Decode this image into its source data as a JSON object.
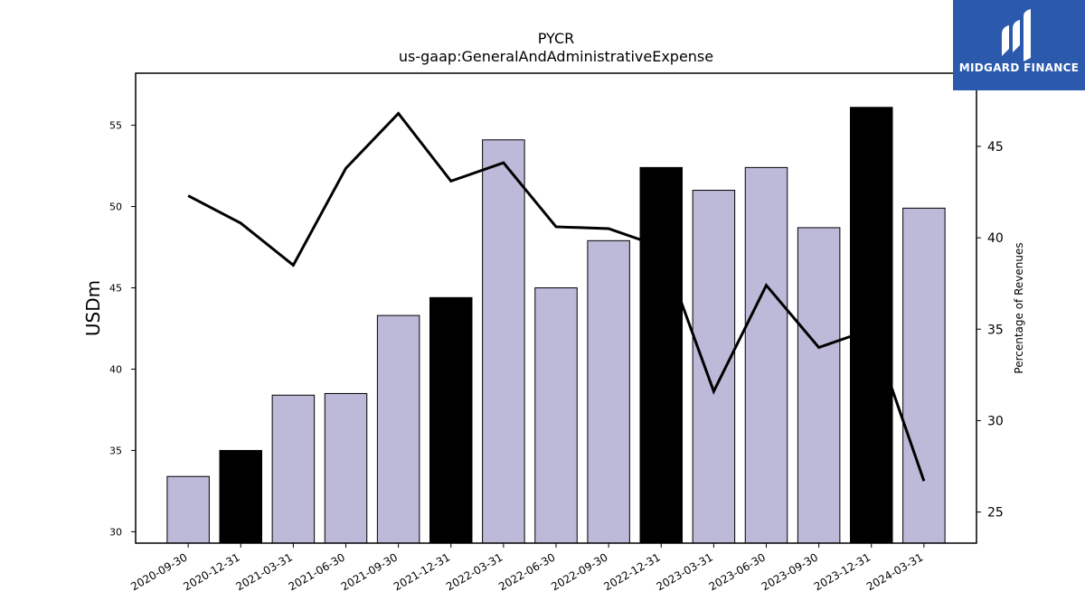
{
  "chart_data": {
    "type": "bar",
    "title": "PYCR",
    "subtitle": "us-gaap:GeneralAndAdministrativeExpense",
    "ylabel": "USDm",
    "y2label": "Percentage of Revenues",
    "categories": [
      "2020-09-30",
      "2020-12-31",
      "2021-03-31",
      "2021-06-30",
      "2021-09-30",
      "2021-12-31",
      "2022-03-31",
      "2022-06-30",
      "2022-09-30",
      "2022-12-31",
      "2023-03-31",
      "2023-06-30",
      "2023-09-30",
      "2023-12-31",
      "2024-03-31"
    ],
    "series": [
      {
        "kind": "bar",
        "values": [
          33.4,
          35.0,
          38.4,
          38.5,
          43.3,
          44.4,
          54.1,
          45.0,
          47.9,
          52.4,
          51.0,
          52.4,
          48.7,
          56.1,
          49.9
        ],
        "colors": [
          "#bcb9d9",
          "#000000",
          "#bcb9d9",
          "#bcb9d9",
          "#bcb9d9",
          "#000000",
          "#bcb9d9",
          "#bcb9d9",
          "#bcb9d9",
          "#000000",
          "#bcb9d9",
          "#bcb9d9",
          "#bcb9d9",
          "#000000",
          "#bcb9d9"
        ]
      },
      {
        "kind": "line",
        "axis": "right",
        "values": [
          42.3,
          40.8,
          38.5,
          43.8,
          46.8,
          43.1,
          44.1,
          40.6,
          40.5,
          39.5,
          31.6,
          37.4,
          34.0,
          35.0,
          26.7
        ]
      }
    ],
    "ylim": [
      29.3,
      58.2
    ],
    "y2lim": [
      23.3,
      49.0
    ],
    "yticks": [
      30,
      35,
      40,
      45,
      50,
      55
    ],
    "y2ticks": [
      25,
      30,
      35,
      40,
      45
    ],
    "grid": false,
    "colors": {
      "bar": "#bcb9d9",
      "bar_highlight": "#000000",
      "line": "#000000"
    }
  },
  "logo": {
    "text": "MIDGARD FINANCE",
    "background": "#2b5aad"
  }
}
